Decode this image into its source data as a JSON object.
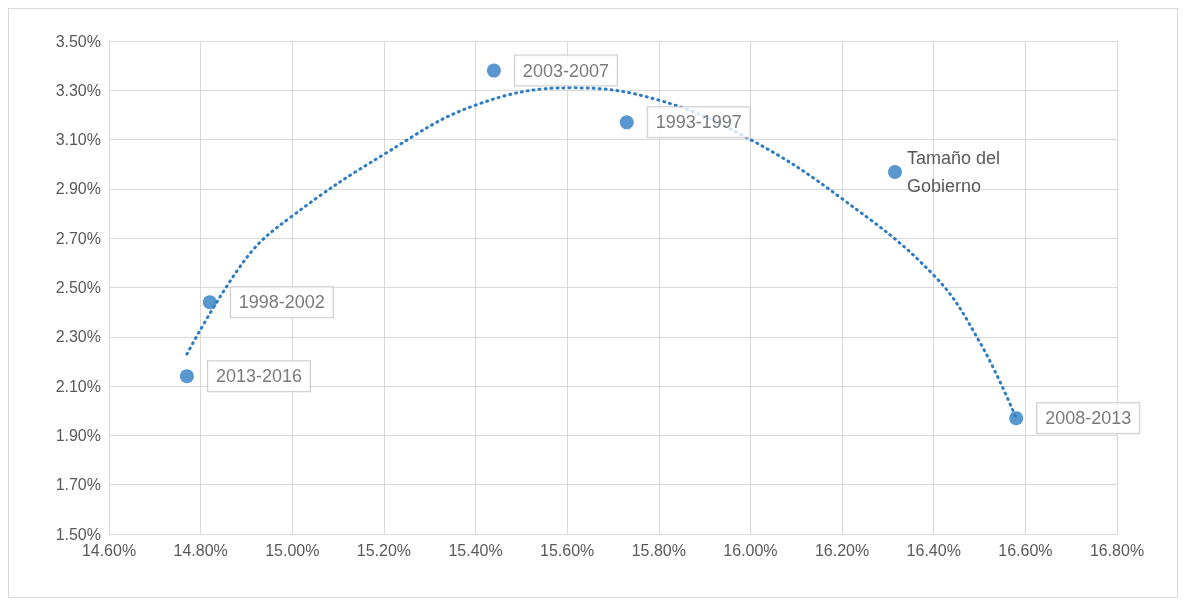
{
  "chart_data": {
    "type": "scatter",
    "xlim": [
      14.6,
      16.8
    ],
    "xticks": [
      {
        "value": 14.6,
        "label": "14.60%"
      },
      {
        "value": 14.8,
        "label": "14.80%"
      },
      {
        "value": 15.0,
        "label": "15.00%"
      },
      {
        "value": 15.2,
        "label": "15.20%"
      },
      {
        "value": 15.4,
        "label": "15.40%"
      },
      {
        "value": 15.6,
        "label": "15.60%"
      },
      {
        "value": 15.8,
        "label": "15.80%"
      },
      {
        "value": 16.0,
        "label": "16.00%"
      },
      {
        "value": 16.2,
        "label": "16.20%"
      },
      {
        "value": 16.4,
        "label": "16.40%"
      },
      {
        "value": 16.6,
        "label": "16.60%"
      },
      {
        "value": 16.8,
        "label": "16.80%"
      }
    ],
    "ylim": [
      1.5,
      3.5
    ],
    "yticks": [
      {
        "value": 1.5,
        "label": "1.50%"
      },
      {
        "value": 1.7,
        "label": "1.70%"
      },
      {
        "value": 1.9,
        "label": "1.90%"
      },
      {
        "value": 2.1,
        "label": "2.10%"
      },
      {
        "value": 2.3,
        "label": "2.30%"
      },
      {
        "value": 2.5,
        "label": "2.50%"
      },
      {
        "value": 2.7,
        "label": "2.70%"
      },
      {
        "value": 2.9,
        "label": "2.90%"
      },
      {
        "value": 3.1,
        "label": "3.10%"
      },
      {
        "value": 3.3,
        "label": "3.30%"
      },
      {
        "value": 3.5,
        "label": "3.50%"
      }
    ],
    "grid": true,
    "legend": "right",
    "marker": "circle",
    "series": [
      {
        "name": "Tamaño del Gobierno",
        "color": "#2e7dc4",
        "x": [
          14.77,
          14.82,
          15.44,
          15.73,
          16.58
        ],
        "values": [
          2.14,
          2.44,
          3.38,
          3.17,
          1.97
        ],
        "value_labels": [
          "2013-2016",
          "1998-2002",
          "2003-2007",
          "1993-1997",
          "2008-2013"
        ]
      },
      {
        "type": "line",
        "color": "#2e7dc4",
        "line_style": "dotted",
        "marker": "none",
        "x": [
          14.77,
          14.9,
          15.0,
          15.2,
          15.4,
          15.61,
          15.8,
          16.0,
          16.2,
          16.4,
          16.5,
          16.58
        ],
        "values": [
          2.23,
          2.62,
          2.79,
          3.04,
          3.24,
          3.31,
          3.26,
          3.1,
          2.86,
          2.55,
          2.28,
          1.97
        ]
      }
    ]
  }
}
